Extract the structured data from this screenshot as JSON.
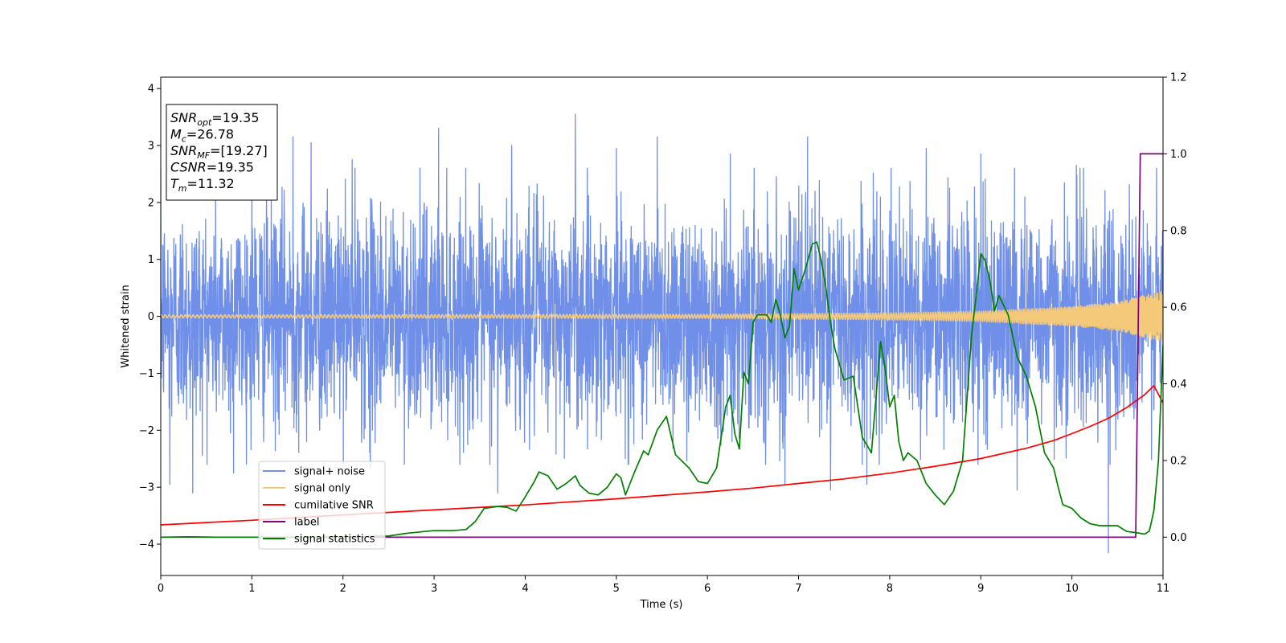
{
  "chart_data": {
    "type": "line",
    "xlabel": "Time (s)",
    "ylabel": "Whitened strain",
    "xlim": [
      0,
      11
    ],
    "ylim": [
      -4.55,
      4.2
    ],
    "y2lim": [
      -0.1,
      1.2
    ],
    "xticks": [
      0,
      1,
      2,
      3,
      4,
      5,
      6,
      7,
      8,
      9,
      10,
      11
    ],
    "xtick_labels": [
      "0",
      "1",
      "2",
      "3",
      "4",
      "5",
      "6",
      "7",
      "8",
      "9",
      "10",
      "11"
    ],
    "yticks": [
      -4,
      -3,
      -2,
      -1,
      0,
      1,
      2,
      3,
      4
    ],
    "ytick_labels": [
      "−4",
      "−3",
      "−2",
      "−1",
      "0",
      "1",
      "2",
      "3",
      "4"
    ],
    "y2ticks": [
      0.0,
      0.2,
      0.4,
      0.6,
      0.8,
      1.0,
      1.2
    ],
    "y2tick_labels": [
      "0.0",
      "0.2",
      "0.4",
      "0.6",
      "0.8",
      "1.0",
      "1.2"
    ],
    "grid": false,
    "legend_placement": "lower-left",
    "annotation": {
      "lines": [
        {
          "sym": "SNR",
          "sub": "opt",
          "val": "=19.35"
        },
        {
          "sym": "M",
          "sub": "c",
          "val": "=26.78"
        },
        {
          "sym": "SNR",
          "sub": "MF",
          "val": "=[19.27]"
        },
        {
          "sym": "CSNR",
          "sub": "",
          "val": "=19.35"
        },
        {
          "sym": "T",
          "sub": "m",
          "val": "=11.32"
        }
      ]
    },
    "series": [
      {
        "name": "signal+ noise",
        "color": "#6f8fe8",
        "axis": "left",
        "kind": "noise",
        "noise_sigma": 0.95,
        "spikes": [
          [
            0.35,
            -3.1
          ],
          [
            0.1,
            -2.95
          ],
          [
            0.8,
            -2.75
          ],
          [
            1.0,
            2.75
          ],
          [
            1.45,
            3.15
          ],
          [
            1.65,
            3.05
          ],
          [
            2.1,
            2.75
          ],
          [
            2.3,
            -2.65
          ],
          [
            3.05,
            3.3
          ],
          [
            3.7,
            -3.1
          ],
          [
            3.85,
            3.0
          ],
          [
            4.55,
            3.55
          ],
          [
            5.0,
            2.95
          ],
          [
            5.45,
            3.15
          ],
          [
            6.25,
            2.85
          ],
          [
            6.85,
            -2.95
          ],
          [
            7.1,
            3.15
          ],
          [
            7.35,
            -3.05
          ],
          [
            7.75,
            -2.95
          ],
          [
            8.4,
            2.95
          ],
          [
            9.0,
            2.85
          ],
          [
            9.4,
            -3.05
          ],
          [
            10.4,
            -4.15
          ],
          [
            10.05,
            2.65
          ]
        ]
      },
      {
        "name": "signal only",
        "color": "#f5c97a",
        "axis": "left",
        "kind": "chirp",
        "chirp_tc": 11.32,
        "chirp_amp": [
          [
            0,
            0.025
          ],
          [
            6,
            0.035
          ],
          [
            8,
            0.06
          ],
          [
            9,
            0.09
          ],
          [
            10,
            0.17
          ],
          [
            10.5,
            0.25
          ],
          [
            11,
            0.45
          ]
        ]
      },
      {
        "name": "cumilative SNR",
        "color": "#ff0000",
        "axis": "right",
        "x": [
          0,
          1,
          2,
          3,
          4,
          5,
          6,
          6.5,
          7,
          7.5,
          8,
          8.5,
          9,
          9.5,
          9.8,
          10,
          10.2,
          10.4,
          10.6,
          10.8,
          10.9,
          11
        ],
        "values": [
          0.032,
          0.044,
          0.058,
          0.071,
          0.084,
          0.1,
          0.118,
          0.128,
          0.14,
          0.152,
          0.167,
          0.185,
          0.205,
          0.232,
          0.252,
          0.27,
          0.289,
          0.31,
          0.338,
          0.372,
          0.395,
          0.35
        ]
      },
      {
        "name": "label",
        "color": "#800080",
        "axis": "right",
        "x": [
          0,
          10.7,
          10.75,
          11
        ],
        "values": [
          0,
          0,
          1.0,
          1.0
        ]
      },
      {
        "name": "signal statistics",
        "color": "#008000",
        "axis": "right",
        "x": [
          0,
          0.3,
          0.6,
          1,
          1.5,
          2,
          2.5,
          2.7,
          2.9,
          3.0,
          3.2,
          3.35,
          3.45,
          3.55,
          3.7,
          3.8,
          3.9,
          4.0,
          4.1,
          4.15,
          4.25,
          4.35,
          4.45,
          4.55,
          4.6,
          4.7,
          4.8,
          4.9,
          5.0,
          5.05,
          5.1,
          5.2,
          5.3,
          5.35,
          5.45,
          5.55,
          5.65,
          5.8,
          5.9,
          6.0,
          6.1,
          6.2,
          6.25,
          6.3,
          6.35,
          6.4,
          6.45,
          6.5,
          6.55,
          6.6,
          6.65,
          6.7,
          6.75,
          6.8,
          6.85,
          6.9,
          6.95,
          7.0,
          7.05,
          7.1,
          7.15,
          7.2,
          7.25,
          7.3,
          7.35,
          7.4,
          7.45,
          7.5,
          7.6,
          7.7,
          7.75,
          7.8,
          7.9,
          7.95,
          8.0,
          8.05,
          8.1,
          8.15,
          8.2,
          8.3,
          8.4,
          8.5,
          8.6,
          8.7,
          8.8,
          8.9,
          8.95,
          9.0,
          9.05,
          9.1,
          9.15,
          9.2,
          9.3,
          9.4,
          9.5,
          9.6,
          9.7,
          9.8,
          9.85,
          9.9,
          10.0,
          10.1,
          10.2,
          10.3,
          10.4,
          10.5,
          10.6,
          10.7,
          10.8,
          10.85,
          10.9,
          10.95,
          11.0
        ],
        "values": [
          0,
          0.001,
          0.0,
          0.0,
          0.0,
          0.0,
          0.003,
          0.01,
          0.015,
          0.017,
          0.017,
          0.02,
          0.04,
          0.075,
          0.08,
          0.078,
          0.068,
          0.105,
          0.145,
          0.17,
          0.16,
          0.125,
          0.14,
          0.16,
          0.135,
          0.115,
          0.11,
          0.13,
          0.165,
          0.155,
          0.11,
          0.17,
          0.225,
          0.215,
          0.28,
          0.315,
          0.215,
          0.18,
          0.145,
          0.14,
          0.18,
          0.34,
          0.37,
          0.27,
          0.23,
          0.43,
          0.4,
          0.56,
          0.58,
          0.58,
          0.58,
          0.56,
          0.62,
          0.58,
          0.52,
          0.55,
          0.7,
          0.645,
          0.68,
          0.72,
          0.765,
          0.77,
          0.72,
          0.65,
          0.56,
          0.49,
          0.45,
          0.41,
          0.42,
          0.26,
          0.24,
          0.22,
          0.51,
          0.44,
          0.34,
          0.37,
          0.25,
          0.2,
          0.22,
          0.2,
          0.14,
          0.11,
          0.085,
          0.12,
          0.2,
          0.53,
          0.63,
          0.74,
          0.72,
          0.67,
          0.59,
          0.63,
          0.58,
          0.47,
          0.42,
          0.34,
          0.22,
          0.18,
          0.13,
          0.085,
          0.075,
          0.05,
          0.035,
          0.03,
          0.03,
          0.03,
          0.015,
          0.012,
          0.008,
          0.016,
          0.07,
          0.2,
          0.5
        ]
      }
    ]
  }
}
